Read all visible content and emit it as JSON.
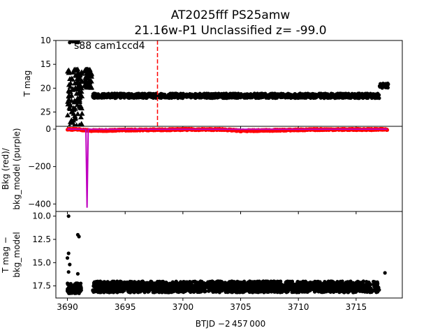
{
  "title_line1": "AT2025fff  PS25amw",
  "title_line2": "21.16w-P1 Unclassified z= -99.0",
  "annotation": "s88 cam1ccd4",
  "xlabel": "BTJD −2 457 000",
  "colors": {
    "mag": "#000000",
    "bkg": "#ff0000",
    "bkg_model": "#bf00bf",
    "marker_line": "#ff0000"
  },
  "chart_data": [
    {
      "type": "scatter",
      "panel": "top",
      "ylabel": "T mag",
      "y_inverted": true,
      "xlim": [
        3689,
        3719
      ],
      "ylim": [
        10,
        28
      ],
      "yticks": [
        "10",
        "15",
        "20",
        "25"
      ],
      "vertical_marker_x": 3697.8,
      "series": [
        {
          "marker": "dot",
          "clusters": [
            {
              "x_range": [
                3690.2,
                3691.0
              ],
              "y": 10.0
            },
            {
              "x_range": [
                3690.9,
                3691.1
              ],
              "y": 17.8
            },
            {
              "x_range": [
                3692.2,
                3717.0
              ],
              "y": 21.6
            },
            {
              "x_range": [
                3717.0,
                3717.8
              ],
              "y": 19.5
            }
          ]
        },
        {
          "marker": "triangle",
          "clusters": [
            {
              "x_range": [
                3690.0,
                3691.3
              ],
              "y_range": [
                16.0,
                28.0
              ]
            },
            {
              "x_range": [
                3691.5,
                3692.1
              ],
              "y_range": [
                16.0,
                20.0
              ]
            }
          ]
        }
      ]
    },
    {
      "type": "line",
      "panel": "middle",
      "ylabel": "Bkg (red)/\nbkg_model (purple)",
      "xlim": [
        3689,
        3719
      ],
      "ylim": [
        -440,
        15
      ],
      "yticks": [
        "0",
        "−200",
        "−400"
      ],
      "series": [
        {
          "color_key": "bkg",
          "x": [
            3690.0,
            3691.0,
            3692.0,
            3695.0,
            3700.0,
            3703.5,
            3705.0,
            3708.0,
            3712.0,
            3717.0,
            3717.7
          ],
          "y": [
            0,
            -2,
            -8,
            -5,
            -2,
            -2,
            -9,
            -6,
            -2,
            -2,
            -1
          ]
        },
        {
          "color_key": "bkg_model",
          "x": [
            3690.0,
            3691.0,
            3691.6,
            3691.7,
            3691.8,
            3692.0,
            3695.0,
            3700.0,
            3705.0,
            3710.0,
            3717.7
          ],
          "y": [
            0,
            0,
            -2,
            -420,
            0,
            -1,
            -1,
            -1,
            -1,
            -1,
            0
          ]
        }
      ]
    },
    {
      "type": "scatter",
      "panel": "bottom",
      "ylabel": "T mag −\nbkg_model",
      "y_inverted": true,
      "xlim": [
        3689,
        3719
      ],
      "ylim": [
        9.5,
        18.8
      ],
      "yticks": [
        "10.0",
        "12.5",
        "15.0",
        "17.5"
      ],
      "series": [
        {
          "marker": "dot",
          "points": [
            [
              3690.1,
              10.0
            ],
            [
              3690.9,
              12.0
            ],
            [
              3691.0,
              12.2
            ],
            [
              3690.1,
              14.0
            ],
            [
              3690.0,
              14.5
            ],
            [
              3690.2,
              15.2
            ],
            [
              3690.1,
              16.0
            ],
            [
              3690.9,
              16.2
            ],
            [
              3717.5,
              16.1
            ]
          ],
          "clusters": [
            {
              "x_range": [
                3690.0,
                3691.2
              ],
              "y_range": [
                17.2,
                18.3
              ]
            },
            {
              "x_range": [
                3692.2,
                3717.0
              ],
              "y_range": [
                17.0,
                18.2
              ]
            }
          ]
        }
      ]
    }
  ],
  "xticks": [
    "3690",
    "3695",
    "3700",
    "3705",
    "3710",
    "3715"
  ],
  "xtick_values": [
    3690,
    3695,
    3700,
    3705,
    3710,
    3715
  ]
}
